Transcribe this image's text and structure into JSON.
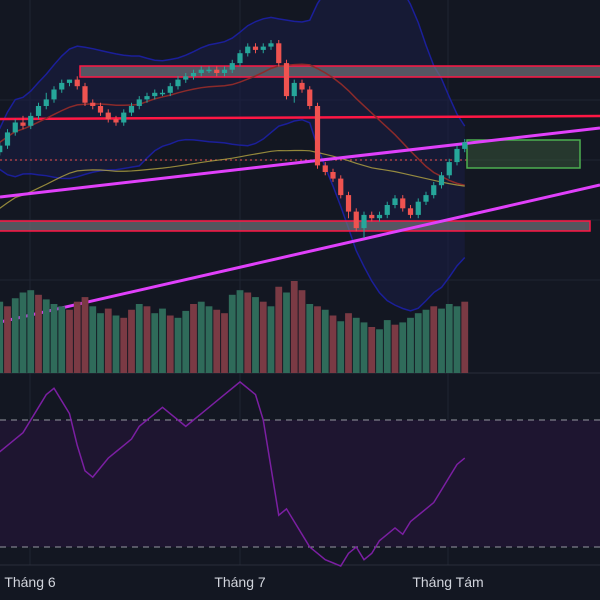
{
  "chart_data": {
    "type": "candlestick",
    "x_axis": {
      "labels": [
        "Tháng 6",
        "Tháng 7",
        "Tháng Tám"
      ]
    },
    "grid": true,
    "colors": {
      "background": "#131722",
      "grid": "#1f2433",
      "up": "#26a69a",
      "down": "#ef5350",
      "volume_up": "#2f6b5a",
      "volume_down": "#7a3a44",
      "trendline": "#e040fb",
      "resistance": "#ff1744",
      "ma_fast": "#8b2a2a",
      "ma_slow": "#b5a642",
      "bollinger": "#1b1f9a",
      "bollinger_fill": "#1a1e45",
      "zone_fill": "#6b6b73",
      "zone_border": "#ff1744",
      "target_box": "#4caf50",
      "rsi": "#7b1fa2",
      "rsi_band_fill": "#1e1530",
      "rsi_levels": "#9598a1"
    },
    "price_range": [
      0,
      100
    ],
    "candles": [
      [
        14,
        16,
        17,
        13
      ],
      [
        16,
        18,
        19,
        15
      ],
      [
        18,
        22,
        23,
        17
      ],
      [
        22,
        25,
        26,
        21
      ],
      [
        25,
        24,
        27,
        23
      ],
      [
        24,
        27,
        28,
        23
      ],
      [
        27,
        30,
        31,
        26
      ],
      [
        30,
        32,
        34,
        29
      ],
      [
        32,
        35,
        36,
        31
      ],
      [
        35,
        37,
        38,
        34
      ],
      [
        37,
        38,
        38,
        36
      ],
      [
        38,
        36,
        39,
        35
      ],
      [
        36,
        31,
        37,
        30
      ],
      [
        31,
        30,
        32,
        29
      ],
      [
        30,
        28,
        31,
        27
      ],
      [
        28,
        26,
        29,
        25
      ],
      [
        26,
        25,
        27,
        24
      ],
      [
        25,
        28,
        29,
        24
      ],
      [
        28,
        30,
        31,
        27
      ],
      [
        30,
        32,
        33,
        29
      ],
      [
        32,
        33,
        34,
        31
      ],
      [
        33,
        34,
        35,
        32
      ],
      [
        34,
        34,
        35,
        33
      ],
      [
        34,
        36,
        37,
        33
      ],
      [
        36,
        38,
        39,
        35
      ],
      [
        38,
        39,
        40,
        37
      ],
      [
        39,
        40,
        41,
        38
      ],
      [
        40,
        41,
        42,
        39
      ],
      [
        41,
        41,
        42,
        40
      ],
      [
        41,
        40,
        42,
        39
      ],
      [
        40,
        41,
        42,
        39
      ],
      [
        41,
        43,
        44,
        40
      ],
      [
        43,
        46,
        47,
        42
      ],
      [
        46,
        48,
        49,
        45
      ],
      [
        48,
        47,
        49,
        46
      ],
      [
        47,
        48,
        49,
        46
      ],
      [
        48,
        49,
        50,
        47
      ],
      [
        49,
        43,
        50,
        42
      ],
      [
        43,
        33,
        44,
        32
      ],
      [
        33,
        37,
        38,
        31
      ],
      [
        37,
        35,
        38,
        34
      ],
      [
        35,
        30,
        36,
        29
      ],
      [
        30,
        12,
        31,
        11
      ],
      [
        12,
        10,
        13,
        9
      ],
      [
        10,
        8,
        11,
        7
      ],
      [
        8,
        3,
        9,
        2
      ],
      [
        3,
        -2,
        4,
        -4
      ],
      [
        -2,
        -7,
        -1,
        -8
      ],
      [
        -7,
        -3,
        -2,
        -10
      ],
      [
        -3,
        -4,
        -2,
        -5
      ],
      [
        -4,
        -3,
        -2,
        -5
      ],
      [
        -3,
        0,
        1,
        -4
      ],
      [
        0,
        2,
        3,
        -1
      ],
      [
        2,
        -1,
        3,
        -2
      ],
      [
        -1,
        -3,
        0,
        -4
      ],
      [
        -3,
        1,
        2,
        -4
      ],
      [
        1,
        3,
        4,
        0
      ],
      [
        3,
        6,
        7,
        2
      ],
      [
        6,
        9,
        10,
        5
      ],
      [
        9,
        13,
        14,
        8
      ],
      [
        13,
        17,
        18,
        12
      ],
      [
        17,
        19,
        20,
        16
      ]
    ],
    "volume": [
      [
        55,
        1
      ],
      [
        62,
        1
      ],
      [
        58,
        0
      ],
      [
        65,
        1
      ],
      [
        70,
        1
      ],
      [
        72,
        1
      ],
      [
        68,
        0
      ],
      [
        64,
        1
      ],
      [
        60,
        1
      ],
      [
        58,
        1
      ],
      [
        55,
        0
      ],
      [
        62,
        0
      ],
      [
        66,
        0
      ],
      [
        58,
        1
      ],
      [
        52,
        1
      ],
      [
        56,
        0
      ],
      [
        50,
        1
      ],
      [
        48,
        0
      ],
      [
        55,
        0
      ],
      [
        60,
        1
      ],
      [
        58,
        0
      ],
      [
        52,
        1
      ],
      [
        56,
        1
      ],
      [
        50,
        0
      ],
      [
        48,
        1
      ],
      [
        54,
        1
      ],
      [
        60,
        0
      ],
      [
        62,
        1
      ],
      [
        58,
        1
      ],
      [
        55,
        0
      ],
      [
        52,
        0
      ],
      [
        68,
        1
      ],
      [
        72,
        1
      ],
      [
        70,
        0
      ],
      [
        66,
        1
      ],
      [
        62,
        0
      ],
      [
        58,
        1
      ],
      [
        75,
        0
      ],
      [
        70,
        1
      ],
      [
        80,
        0
      ],
      [
        72,
        0
      ],
      [
        60,
        1
      ],
      [
        58,
        0
      ],
      [
        55,
        1
      ],
      [
        50,
        0
      ],
      [
        45,
        1
      ],
      [
        52,
        0
      ],
      [
        48,
        1
      ],
      [
        44,
        1
      ],
      [
        40,
        0
      ],
      [
        38,
        1
      ],
      [
        46,
        1
      ],
      [
        42,
        0
      ],
      [
        44,
        1
      ],
      [
        48,
        1
      ],
      [
        52,
        1
      ],
      [
        55,
        1
      ],
      [
        58,
        0
      ],
      [
        56,
        1
      ],
      [
        60,
        1
      ],
      [
        58,
        1
      ],
      [
        62,
        0
      ]
    ],
    "rsi": [
      58,
      60,
      62,
      64,
      66,
      70,
      74,
      78,
      80,
      76,
      72,
      62,
      54,
      52,
      55,
      58,
      60,
      62,
      64,
      68,
      70,
      72,
      74,
      72,
      70,
      68,
      70,
      72,
      74,
      76,
      78,
      80,
      82,
      80,
      78,
      70,
      55,
      40,
      42,
      38,
      34,
      30,
      28,
      26,
      25,
      24,
      28,
      30,
      26,
      28,
      32,
      34,
      36,
      34,
      38,
      40,
      42,
      44,
      48,
      52,
      56,
      58
    ],
    "levels": {
      "rsi_upper": 70,
      "rsi_lower": 30
    }
  }
}
